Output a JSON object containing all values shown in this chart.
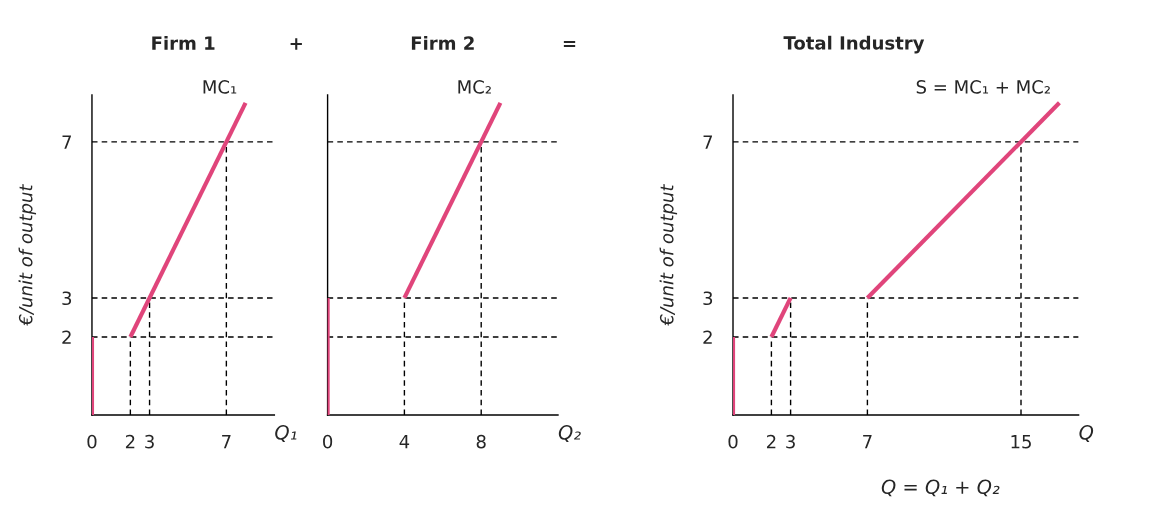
{
  "chart_data": [
    {
      "type": "line",
      "title": "Firm 1",
      "xlabel": "Q₁",
      "ylabel": "€/unit of output",
      "annotations": [
        "+"
      ],
      "xlim": [
        0,
        9.5
      ],
      "ylim": [
        0,
        8.2
      ],
      "xticks": [
        0,
        2,
        3,
        7
      ],
      "yticks": [
        2,
        3,
        7
      ],
      "grid": false,
      "legend": false,
      "line_style": "solid",
      "marker": "none",
      "series": [
        {
          "color": "#e0457b",
          "x": [
            0,
            0
          ],
          "values": [
            0,
            2
          ]
        },
        {
          "name": "MC₁",
          "color": "#e0457b",
          "x": [
            2,
            8
          ],
          "values": [
            2,
            8
          ]
        }
      ],
      "ref_lines": [
        {
          "axis": "y",
          "value": 2,
          "color": "#000000",
          "line_style": "dashed"
        },
        {
          "axis": "y",
          "value": 3,
          "color": "#000000",
          "line_style": "dashed"
        },
        {
          "axis": "y",
          "value": 7,
          "color": "#000000",
          "line_style": "dashed"
        },
        {
          "axis": "x",
          "value": 2,
          "color": "#000000",
          "line_style": "dashed"
        },
        {
          "axis": "x",
          "value": 3,
          "color": "#000000",
          "line_style": "dashed"
        },
        {
          "axis": "x",
          "value": 7,
          "color": "#000000",
          "line_style": "dashed"
        }
      ]
    },
    {
      "type": "line",
      "title": "Firm 2",
      "xlabel": "Q₂",
      "annotations": [
        "="
      ],
      "xlim": [
        0,
        12
      ],
      "ylim": [
        0,
        8.2
      ],
      "xticks": [
        0,
        4,
        8
      ],
      "tick_labels": "x",
      "grid": false,
      "legend": false,
      "line_style": "solid",
      "marker": "none",
      "series": [
        {
          "color": "#e0457b",
          "x": [
            0,
            0
          ],
          "values": [
            0,
            3
          ]
        },
        {
          "name": "MC₂",
          "color": "#e0457b",
          "x": [
            4,
            9
          ],
          "values": [
            3,
            8
          ]
        }
      ],
      "ref_lines": [
        {
          "axis": "y",
          "value": 2,
          "color": "#000000",
          "line_style": "dashed"
        },
        {
          "axis": "y",
          "value": 3,
          "color": "#000000",
          "line_style": "dashed"
        },
        {
          "axis": "y",
          "value": 7,
          "color": "#000000",
          "line_style": "dashed"
        },
        {
          "axis": "x",
          "value": 4,
          "color": "#000000",
          "line_style": "dashed"
        },
        {
          "axis": "x",
          "value": 8,
          "color": "#000000",
          "line_style": "dashed"
        }
      ]
    },
    {
      "type": "line",
      "title": "Total Industry",
      "xlabel": "Q",
      "ylabel": "€/unit of output",
      "annotations": [
        "Q = Q₁ + Q₂"
      ],
      "xlim": [
        0,
        18
      ],
      "ylim": [
        0,
        8.2
      ],
      "xticks": [
        0,
        2,
        3,
        7,
        15
      ],
      "yticks": [
        2,
        3,
        7
      ],
      "grid": false,
      "legend": false,
      "line_style": "solid",
      "marker": "none",
      "series": [
        {
          "color": "#e0457b",
          "x": [
            0,
            0
          ],
          "values": [
            0,
            2
          ]
        },
        {
          "color": "#e0457b",
          "x": [
            2,
            3
          ],
          "values": [
            2,
            3
          ]
        },
        {
          "name": "S = MC₁ + MC₂",
          "color": "#e0457b",
          "x": [
            7,
            17
          ],
          "values": [
            3,
            8
          ]
        }
      ],
      "ref_lines": [
        {
          "axis": "y",
          "value": 2,
          "color": "#000000",
          "line_style": "dashed"
        },
        {
          "axis": "y",
          "value": 3,
          "color": "#000000",
          "line_style": "dashed"
        },
        {
          "axis": "y",
          "value": 7,
          "color": "#000000",
          "line_style": "dashed"
        },
        {
          "axis": "x",
          "value": 2,
          "color": "#000000",
          "line_style": "dashed"
        },
        {
          "axis": "x",
          "value": 3,
          "color": "#000000",
          "line_style": "dashed"
        },
        {
          "axis": "x",
          "value": 7,
          "color": "#000000",
          "line_style": "dashed"
        },
        {
          "axis": "x",
          "value": 15,
          "color": "#000000",
          "line_style": "dashed"
        }
      ]
    }
  ]
}
